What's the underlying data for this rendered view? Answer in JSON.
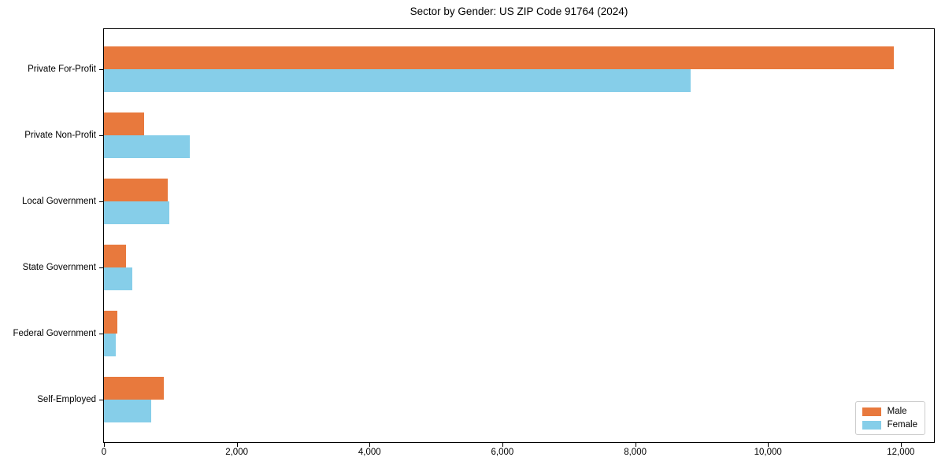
{
  "title": "Sector by Gender: US ZIP Code 91764 (2024)",
  "colors": {
    "male": "#e8793d",
    "female": "#86cee9",
    "axis": "#000000",
    "legend_border": "#cccccc",
    "background": "#ffffff"
  },
  "legend": {
    "position": "lower right",
    "items": [
      {
        "label": "Male",
        "color": "#e8793d"
      },
      {
        "label": "Female",
        "color": "#86cee9"
      }
    ]
  },
  "chart_data": {
    "type": "bar",
    "orientation": "horizontal",
    "title": "Sector by Gender: US ZIP Code 91764 (2024)",
    "categories": [
      "Private For-Profit",
      "Private Non-Profit",
      "Local Government",
      "State Government",
      "Federal Government",
      "Self-Employed"
    ],
    "series": [
      {
        "name": "Male",
        "color": "#e8793d",
        "values": [
          11900,
          600,
          960,
          330,
          200,
          900
        ]
      },
      {
        "name": "Female",
        "color": "#86cee9",
        "values": [
          8840,
          1290,
          980,
          430,
          180,
          710
        ]
      }
    ],
    "xlabel": "",
    "ylabel": "",
    "xlim": [
      0,
      12500
    ],
    "xticks": [
      0,
      2000,
      4000,
      6000,
      8000,
      10000,
      12000
    ],
    "xtick_labels": [
      "0",
      "2,000",
      "4,000",
      "6,000",
      "8,000",
      "10,000",
      "12,000"
    ],
    "grid": false,
    "legend_position": "lower right"
  }
}
